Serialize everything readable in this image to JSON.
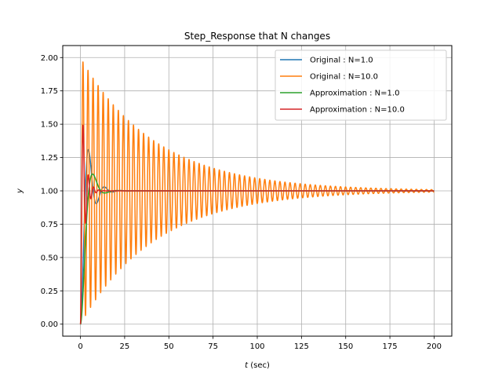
{
  "chart_data": {
    "type": "line",
    "title": "Step_Response that N changes",
    "xlabel_italic": "t",
    "xlabel_rest": " (sec)",
    "ylabel": "y",
    "xlim": [
      -10,
      210
    ],
    "ylim": [
      -0.09,
      2.09
    ],
    "x_ticks": [
      0,
      25,
      50,
      75,
      100,
      125,
      150,
      175,
      200
    ],
    "y_ticks": [
      0.0,
      0.25,
      0.5,
      0.75,
      1.0,
      1.25,
      1.5,
      1.75,
      2.0
    ],
    "y_tick_labels": [
      "0.00",
      "0.25",
      "0.50",
      "0.75",
      "1.00",
      "1.25",
      "1.50",
      "1.75",
      "2.00"
    ],
    "x_tick_labels": [
      "0",
      "25",
      "50",
      "75",
      "100",
      "125",
      "150",
      "175",
      "200"
    ],
    "grid": true,
    "legend_position": "top-right",
    "series": [
      {
        "name": "Original : N=1.0",
        "color": "#1f77b4",
        "model": "second_order",
        "params": {
          "zeta": 0.35,
          "omega_n": 0.75,
          "t_end": 200
        }
      },
      {
        "name": "Original : N=10.0",
        "color": "#ff7f0e",
        "model": "second_order",
        "params": {
          "zeta": 0.0107,
          "omega_n": 2.2,
          "t_end": 200
        }
      },
      {
        "name": "Approximation : N=1.0",
        "color": "#2ca02c",
        "model": "second_order",
        "params": {
          "zeta": 0.55,
          "omega_n": 0.55,
          "t_end": 200
        }
      },
      {
        "name": "Approximation : N=10.0",
        "color": "#d62728",
        "model": "second_order",
        "params": {
          "zeta": 0.22,
          "omega_n": 2.2,
          "t_end": 200
        }
      }
    ]
  }
}
